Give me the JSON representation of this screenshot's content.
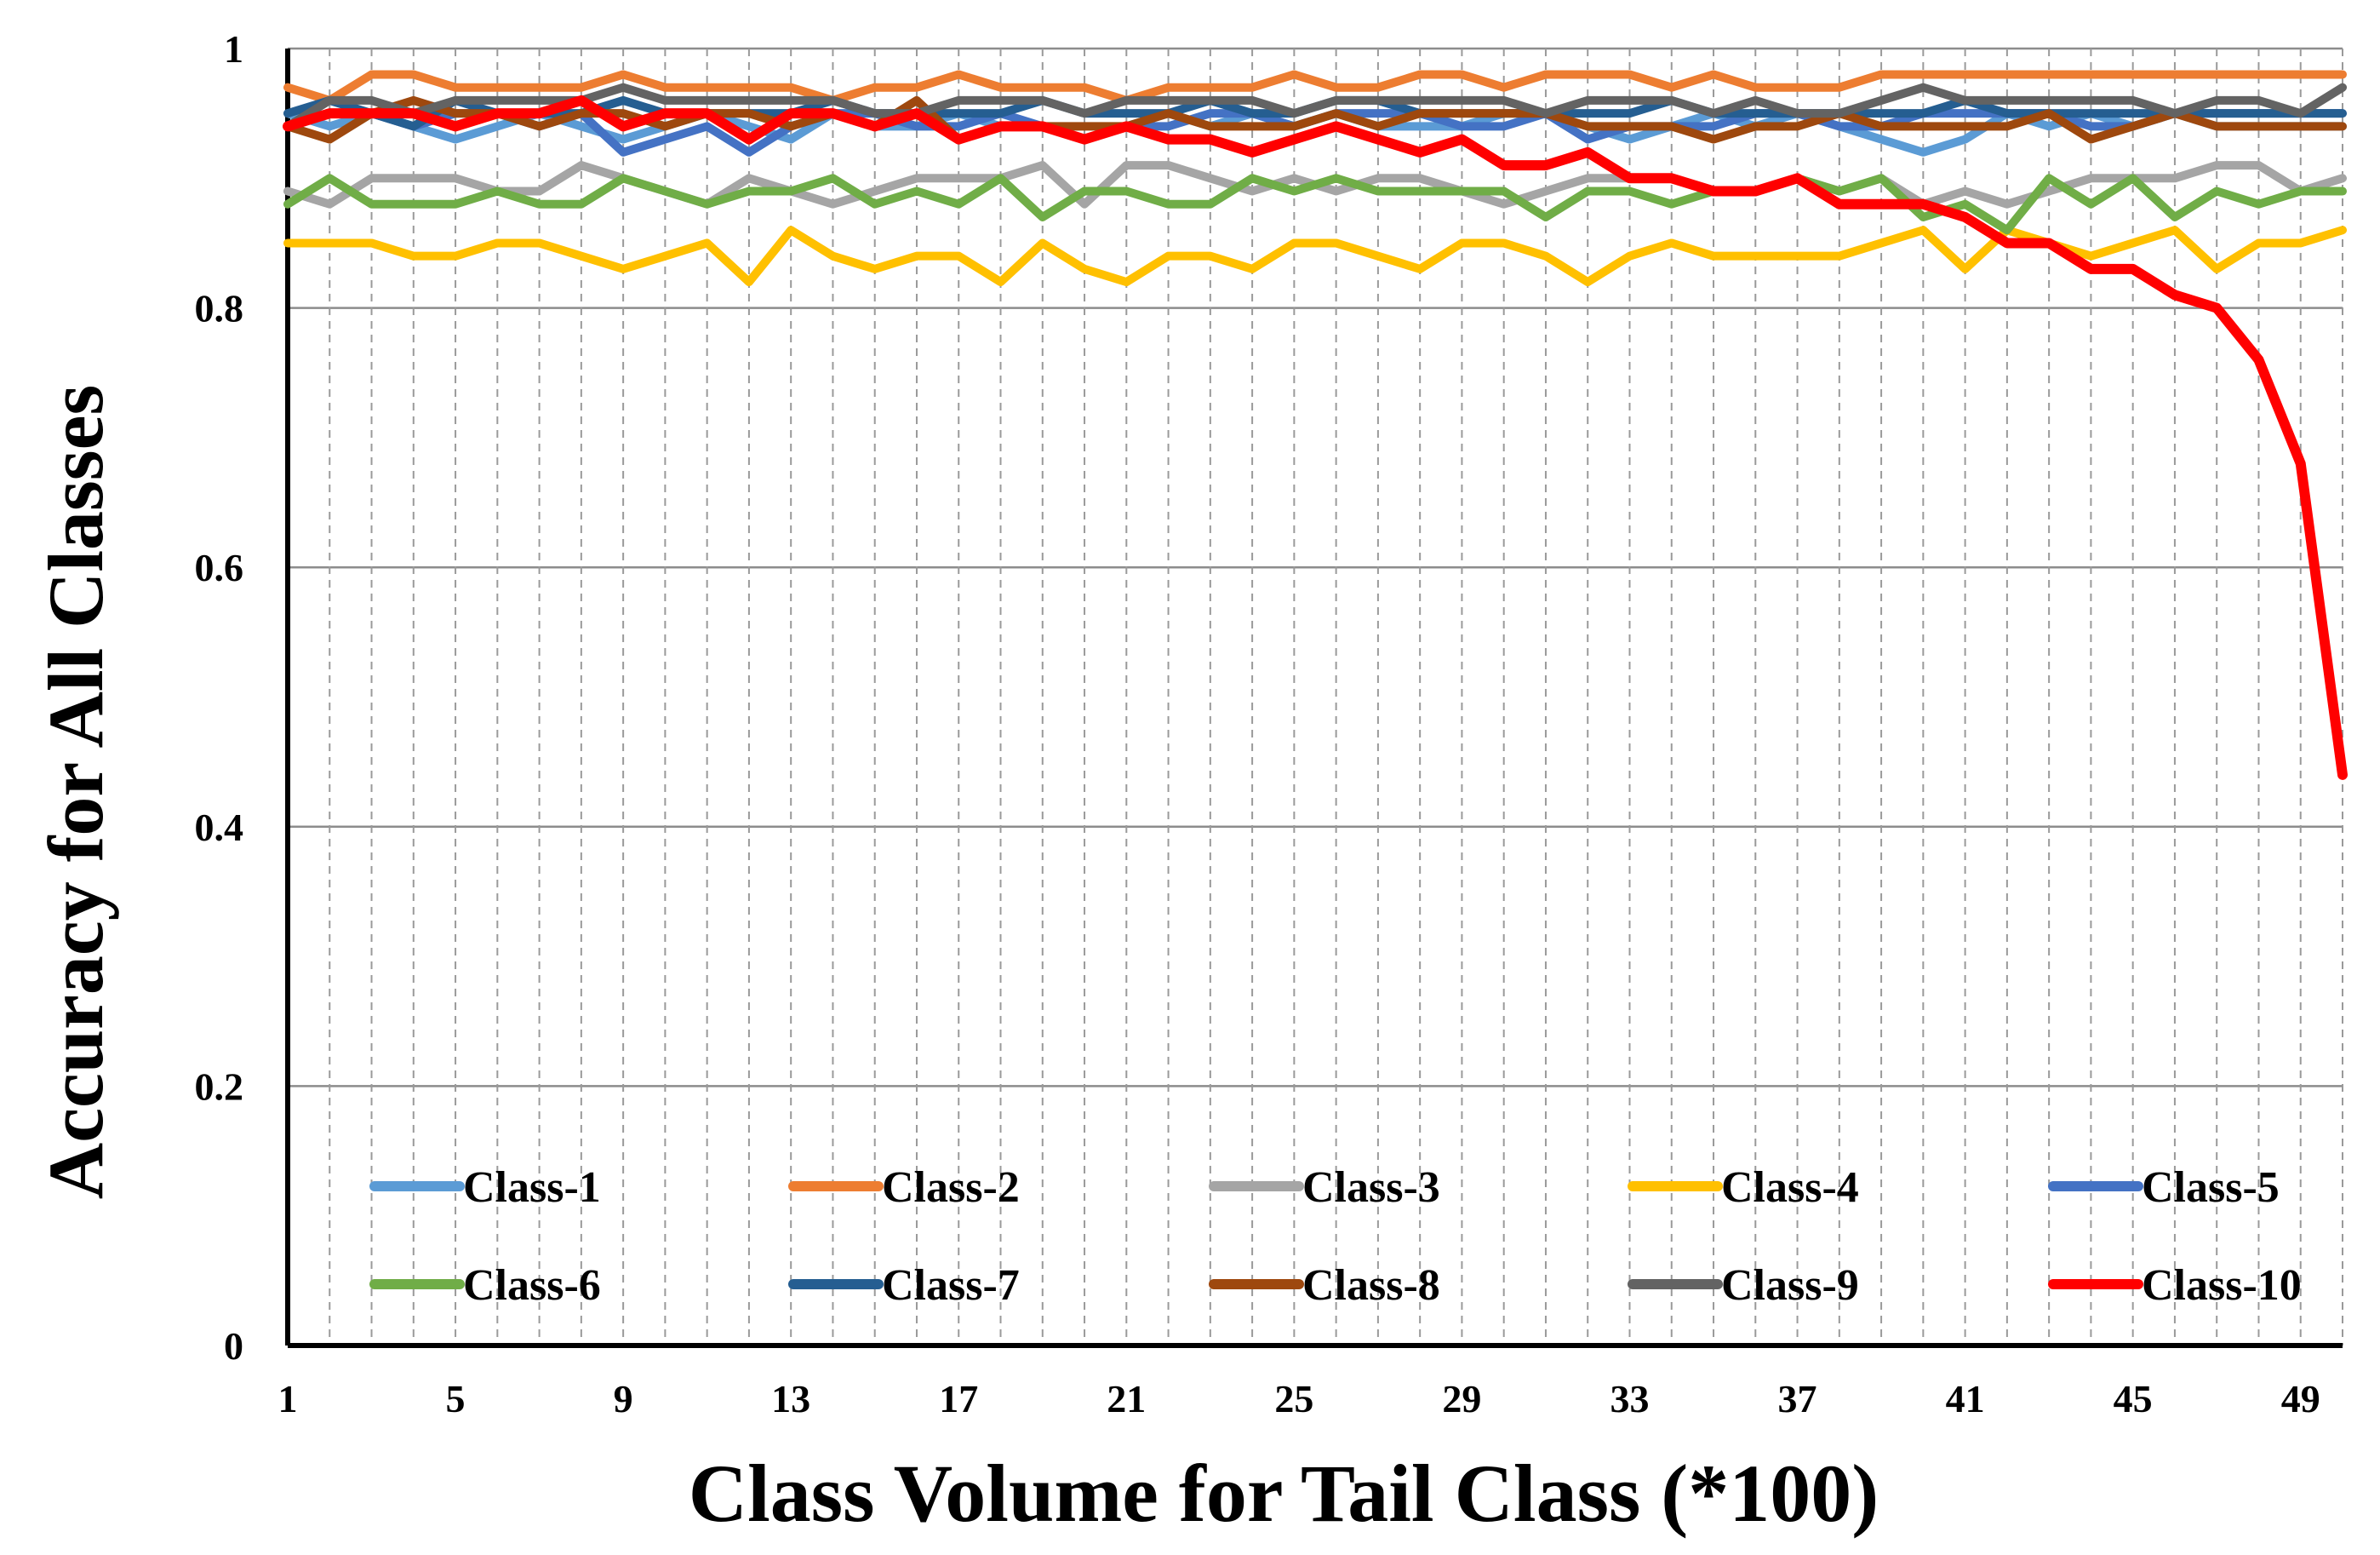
{
  "chart_data": {
    "type": "line",
    "title": "",
    "xlabel": "Class Volume for Tail Class (*100)",
    "ylabel": "Accuracy for All Classes",
    "xlim": [
      1,
      50
    ],
    "ylim": [
      0,
      1
    ],
    "x_ticks": [
      "1",
      "5",
      "9",
      "13",
      "17",
      "21",
      "25",
      "29",
      "33",
      "37",
      "41",
      "45",
      "49"
    ],
    "y_ticks": [
      "0",
      "0.2",
      "0.4",
      "0.6",
      "0.8",
      "1"
    ],
    "grid": "horizontal-solid, vertical-dashed",
    "legend_position": "bottom-inside",
    "x": [
      1,
      2,
      3,
      4,
      5,
      6,
      7,
      8,
      9,
      10,
      11,
      12,
      13,
      14,
      15,
      16,
      17,
      18,
      19,
      20,
      21,
      22,
      23,
      24,
      25,
      26,
      27,
      28,
      29,
      30,
      31,
      32,
      33,
      34,
      35,
      36,
      37,
      38,
      39,
      40,
      41,
      42,
      43,
      44,
      45,
      46,
      47,
      48,
      49,
      50
    ],
    "series": [
      {
        "name": "Class-1",
        "color": "#5B9BD5",
        "values": [
          0.95,
          0.94,
          0.95,
          0.94,
          0.93,
          0.94,
          0.95,
          0.94,
          0.93,
          0.94,
          0.95,
          0.94,
          0.93,
          0.95,
          0.94,
          0.94,
          0.95,
          0.94,
          0.94,
          0.93,
          0.94,
          0.95,
          0.94,
          0.95,
          0.94,
          0.95,
          0.94,
          0.94,
          0.94,
          0.95,
          0.95,
          0.94,
          0.93,
          0.94,
          0.95,
          0.94,
          0.95,
          0.94,
          0.93,
          0.92,
          0.93,
          0.95,
          0.94,
          0.95,
          0.94,
          0.95,
          0.94,
          0.94,
          0.94,
          0.94
        ]
      },
      {
        "name": "Class-2",
        "color": "#ED7D31",
        "values": [
          0.97,
          0.96,
          0.98,
          0.98,
          0.97,
          0.97,
          0.97,
          0.97,
          0.98,
          0.97,
          0.97,
          0.97,
          0.97,
          0.96,
          0.97,
          0.97,
          0.98,
          0.97,
          0.97,
          0.97,
          0.96,
          0.97,
          0.97,
          0.97,
          0.98,
          0.97,
          0.97,
          0.98,
          0.98,
          0.97,
          0.98,
          0.98,
          0.98,
          0.97,
          0.98,
          0.97,
          0.97,
          0.97,
          0.98,
          0.98,
          0.98,
          0.98,
          0.98,
          0.98,
          0.98,
          0.98,
          0.98,
          0.98,
          0.98,
          0.98
        ]
      },
      {
        "name": "Class-3",
        "color": "#A5A5A5",
        "values": [
          0.89,
          0.88,
          0.9,
          0.9,
          0.9,
          0.89,
          0.89,
          0.91,
          0.9,
          0.89,
          0.88,
          0.9,
          0.89,
          0.88,
          0.89,
          0.9,
          0.9,
          0.9,
          0.91,
          0.88,
          0.91,
          0.91,
          0.9,
          0.89,
          0.9,
          0.89,
          0.9,
          0.9,
          0.89,
          0.88,
          0.89,
          0.9,
          0.9,
          0.9,
          0.89,
          0.89,
          0.9,
          0.89,
          0.9,
          0.88,
          0.89,
          0.88,
          0.89,
          0.9,
          0.9,
          0.9,
          0.91,
          0.91,
          0.89,
          0.9
        ]
      },
      {
        "name": "Class-4",
        "color": "#FFC000",
        "values": [
          0.85,
          0.85,
          0.85,
          0.84,
          0.84,
          0.85,
          0.85,
          0.84,
          0.83,
          0.84,
          0.85,
          0.82,
          0.86,
          0.84,
          0.83,
          0.84,
          0.84,
          0.82,
          0.85,
          0.83,
          0.82,
          0.84,
          0.84,
          0.83,
          0.85,
          0.85,
          0.84,
          0.83,
          0.85,
          0.85,
          0.84,
          0.82,
          0.84,
          0.85,
          0.84,
          0.84,
          0.84,
          0.84,
          0.85,
          0.86,
          0.83,
          0.86,
          0.85,
          0.84,
          0.85,
          0.86,
          0.83,
          0.85,
          0.85,
          0.86
        ]
      },
      {
        "name": "Class-5",
        "color": "#4472C4",
        "values": [
          0.94,
          0.95,
          0.95,
          0.94,
          0.95,
          0.95,
          0.94,
          0.95,
          0.92,
          0.93,
          0.94,
          0.92,
          0.94,
          0.95,
          0.95,
          0.94,
          0.94,
          0.95,
          0.94,
          0.93,
          0.94,
          0.94,
          0.95,
          0.95,
          0.94,
          0.95,
          0.95,
          0.95,
          0.94,
          0.94,
          0.95,
          0.93,
          0.94,
          0.94,
          0.94,
          0.95,
          0.95,
          0.94,
          0.94,
          0.95,
          0.95,
          0.95,
          0.95,
          0.94,
          0.94,
          0.95,
          0.95,
          0.95,
          0.95,
          0.95
        ]
      },
      {
        "name": "Class-6",
        "color": "#70AD47",
        "values": [
          0.88,
          0.9,
          0.88,
          0.88,
          0.88,
          0.89,
          0.88,
          0.88,
          0.9,
          0.89,
          0.88,
          0.89,
          0.89,
          0.9,
          0.88,
          0.89,
          0.88,
          0.9,
          0.87,
          0.89,
          0.89,
          0.88,
          0.88,
          0.9,
          0.89,
          0.9,
          0.89,
          0.89,
          0.89,
          0.89,
          0.87,
          0.89,
          0.89,
          0.88,
          0.89,
          0.89,
          0.9,
          0.89,
          0.9,
          0.87,
          0.88,
          0.86,
          0.9,
          0.88,
          0.9,
          0.87,
          0.89,
          0.88,
          0.89,
          0.89
        ]
      },
      {
        "name": "Class-7",
        "color": "#255E91",
        "values": [
          0.95,
          0.96,
          0.95,
          0.94,
          0.96,
          0.95,
          0.95,
          0.95,
          0.96,
          0.95,
          0.95,
          0.95,
          0.95,
          0.96,
          0.95,
          0.95,
          0.95,
          0.95,
          0.96,
          0.95,
          0.95,
          0.95,
          0.96,
          0.95,
          0.95,
          0.96,
          0.96,
          0.95,
          0.95,
          0.95,
          0.95,
          0.95,
          0.95,
          0.96,
          0.95,
          0.95,
          0.95,
          0.95,
          0.95,
          0.95,
          0.96,
          0.95,
          0.95,
          0.95,
          0.95,
          0.95,
          0.95,
          0.95,
          0.95,
          0.95
        ]
      },
      {
        "name": "Class-8",
        "color": "#9E480E",
        "values": [
          0.94,
          0.93,
          0.95,
          0.96,
          0.95,
          0.95,
          0.94,
          0.95,
          0.95,
          0.94,
          0.95,
          0.95,
          0.94,
          0.95,
          0.94,
          0.96,
          0.93,
          0.94,
          0.94,
          0.94,
          0.94,
          0.95,
          0.94,
          0.94,
          0.94,
          0.95,
          0.94,
          0.95,
          0.95,
          0.95,
          0.95,
          0.94,
          0.94,
          0.94,
          0.93,
          0.94,
          0.94,
          0.95,
          0.94,
          0.94,
          0.94,
          0.94,
          0.95,
          0.93,
          0.94,
          0.95,
          0.94,
          0.94,
          0.94,
          0.94
        ]
      },
      {
        "name": "Class-9",
        "color": "#636363",
        "values": [
          0.94,
          0.96,
          0.96,
          0.95,
          0.96,
          0.96,
          0.96,
          0.96,
          0.97,
          0.96,
          0.96,
          0.96,
          0.96,
          0.96,
          0.95,
          0.95,
          0.96,
          0.96,
          0.96,
          0.95,
          0.96,
          0.96,
          0.96,
          0.96,
          0.95,
          0.96,
          0.96,
          0.96,
          0.96,
          0.96,
          0.95,
          0.96,
          0.96,
          0.96,
          0.95,
          0.96,
          0.95,
          0.95,
          0.96,
          0.97,
          0.96,
          0.96,
          0.96,
          0.96,
          0.96,
          0.95,
          0.96,
          0.96,
          0.95,
          0.97
        ]
      },
      {
        "name": "Class-10",
        "color": "#FF0000",
        "values": [
          0.94,
          0.95,
          0.95,
          0.95,
          0.94,
          0.95,
          0.95,
          0.96,
          0.94,
          0.95,
          0.95,
          0.93,
          0.95,
          0.95,
          0.94,
          0.95,
          0.93,
          0.94,
          0.94,
          0.93,
          0.94,
          0.93,
          0.93,
          0.92,
          0.93,
          0.94,
          0.93,
          0.92,
          0.93,
          0.91,
          0.91,
          0.92,
          0.9,
          0.9,
          0.89,
          0.89,
          0.9,
          0.88,
          0.88,
          0.88,
          0.87,
          0.85,
          0.85,
          0.83,
          0.83,
          0.81,
          0.8,
          0.76,
          0.68,
          0.44
        ]
      }
    ]
  }
}
